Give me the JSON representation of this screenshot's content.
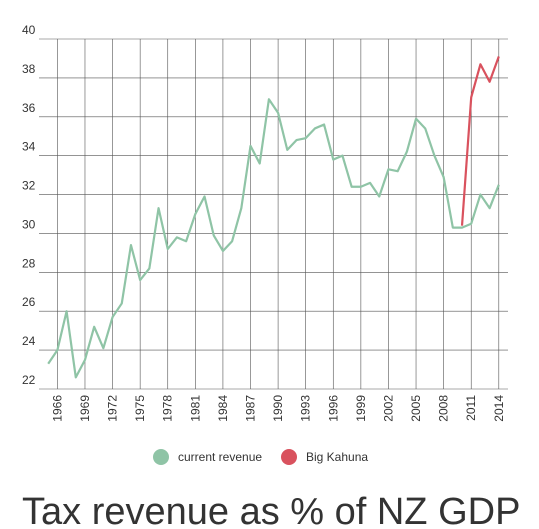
{
  "chart_data": {
    "type": "line",
    "title": "Tax revenue as % of NZ GDP",
    "x": [
      1965,
      1966,
      1967,
      1968,
      1969,
      1970,
      1971,
      1972,
      1973,
      1974,
      1975,
      1976,
      1977,
      1978,
      1979,
      1980,
      1981,
      1982,
      1983,
      1984,
      1985,
      1986,
      1987,
      1988,
      1989,
      1990,
      1991,
      1992,
      1993,
      1994,
      1995,
      1996,
      1997,
      1998,
      1999,
      2000,
      2001,
      2002,
      2003,
      2004,
      2005,
      2006,
      2007,
      2008,
      2009,
      2010,
      2011,
      2012,
      2013,
      2014
    ],
    "series": [
      {
        "name": "current revenue",
        "color": "#8fc4a6",
        "values": [
          23.3,
          24.0,
          26.0,
          22.6,
          23.5,
          25.2,
          24.1,
          25.7,
          26.4,
          29.4,
          27.6,
          28.2,
          31.3,
          29.2,
          29.8,
          29.6,
          31.0,
          31.9,
          29.9,
          29.1,
          29.6,
          31.3,
          34.5,
          33.6,
          36.9,
          36.2,
          34.3,
          34.8,
          34.9,
          35.4,
          35.6,
          33.8,
          34.0,
          32.4,
          32.4,
          32.6,
          31.9,
          33.3,
          33.2,
          34.2,
          35.9,
          35.4,
          34.0,
          32.9,
          30.3,
          30.3,
          30.5,
          32.0,
          31.3,
          32.5
        ]
      },
      {
        "name": "Big Kahuna",
        "color": "#d9525e",
        "values": [
          null,
          null,
          null,
          null,
          null,
          null,
          null,
          null,
          null,
          null,
          null,
          null,
          null,
          null,
          null,
          null,
          null,
          null,
          null,
          null,
          null,
          null,
          null,
          null,
          null,
          null,
          null,
          null,
          null,
          null,
          null,
          null,
          null,
          null,
          null,
          null,
          null,
          null,
          null,
          null,
          null,
          null,
          null,
          null,
          null,
          30.4,
          37.0,
          38.7,
          37.8,
          39.1
        ]
      }
    ],
    "xlim": [
      1964,
      2015
    ],
    "xticks": [
      1966,
      1969,
      1972,
      1975,
      1978,
      1981,
      1984,
      1987,
      1990,
      1993,
      1996,
      1999,
      2002,
      2005,
      2008,
      2011,
      2014
    ],
    "ylim": [
      22,
      40
    ],
    "yticks": [
      22,
      24,
      26,
      28,
      30,
      32,
      34,
      36,
      38,
      40
    ],
    "grid": true,
    "legend": "bottom"
  }
}
